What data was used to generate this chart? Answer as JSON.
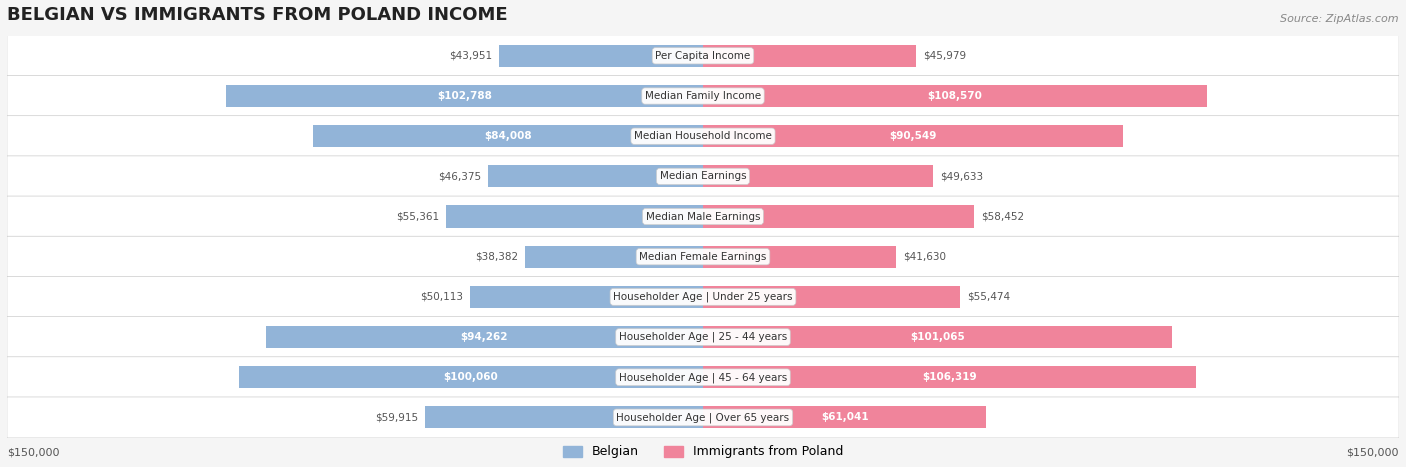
{
  "title": "BELGIAN VS IMMIGRANTS FROM POLAND INCOME",
  "source": "Source: ZipAtlas.com",
  "categories": [
    "Per Capita Income",
    "Median Family Income",
    "Median Household Income",
    "Median Earnings",
    "Median Male Earnings",
    "Median Female Earnings",
    "Householder Age | Under 25 years",
    "Householder Age | 25 - 44 years",
    "Householder Age | 45 - 64 years",
    "Householder Age | Over 65 years"
  ],
  "belgian_values": [
    43951,
    102788,
    84008,
    46375,
    55361,
    38382,
    50113,
    94262,
    100060,
    59915
  ],
  "poland_values": [
    45979,
    108570,
    90549,
    49633,
    58452,
    41630,
    55474,
    101065,
    106319,
    61041
  ],
  "belgian_labels": [
    "$43,951",
    "$102,788",
    "$84,008",
    "$46,375",
    "$55,361",
    "$38,382",
    "$50,113",
    "$94,262",
    "$100,060",
    "$59,915"
  ],
  "poland_labels": [
    "$45,979",
    "$108,570",
    "$90,549",
    "$49,633",
    "$58,452",
    "$41,630",
    "$55,474",
    "$101,065",
    "$106,319",
    "$61,041"
  ],
  "max_value": 150000,
  "belgian_color": "#92b4d8",
  "poland_color": "#f0849b",
  "belgian_label_color_inside": "#ffffff",
  "belgian_label_color_outside": "#555555",
  "poland_label_color_inside": "#ffffff",
  "poland_label_color_outside": "#555555",
  "bar_height": 0.55,
  "bg_color": "#f5f5f5",
  "row_bg_color": "#ffffff",
  "legend_belgian": "Belgian",
  "legend_poland": "Immigrants from Poland",
  "xlabel_left": "$150,000",
  "xlabel_right": "$150,000",
  "inside_threshold": 60000
}
